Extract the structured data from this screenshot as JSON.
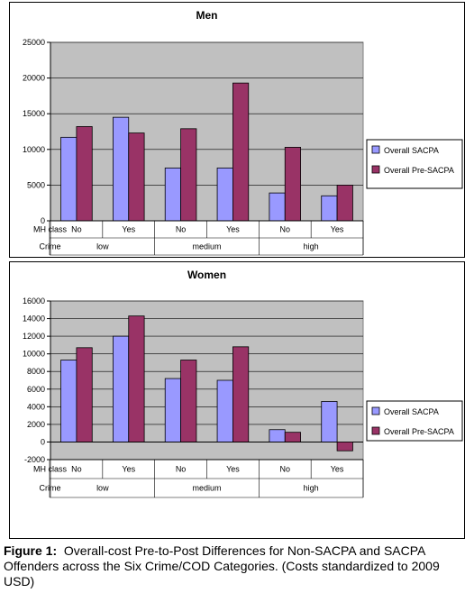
{
  "chart_data": [
    {
      "type": "bar",
      "title": "Men",
      "categories": [
        "No",
        "Yes",
        "No",
        "Yes",
        "No",
        "Yes"
      ],
      "category_row_label": "MH class",
      "groups": [
        {
          "label": "low",
          "span": 2
        },
        {
          "label": "medium",
          "span": 2
        },
        {
          "label": "high",
          "span": 2
        }
      ],
      "group_row_label": "Crime",
      "series": [
        {
          "name": "Overall SACPA",
          "color": "#9999ff",
          "values": [
            11700,
            14500,
            7400,
            7400,
            3900,
            3500
          ]
        },
        {
          "name": "Overall Pre-SACPA",
          "color": "#993366",
          "values": [
            13200,
            12300,
            12900,
            19300,
            10300,
            5000
          ]
        }
      ],
      "yticks": [
        0,
        5000,
        10000,
        15000,
        20000,
        25000
      ],
      "ylim": [
        0,
        25000
      ],
      "grid": true,
      "plot_bg": "#c0c0c0",
      "legend": "right"
    },
    {
      "type": "bar",
      "title": "Women",
      "categories": [
        "No",
        "Yes",
        "No",
        "Yes",
        "No",
        "Yes"
      ],
      "category_row_label": "MH class",
      "groups": [
        {
          "label": "low",
          "span": 2
        },
        {
          "label": "medium",
          "span": 2
        },
        {
          "label": "high",
          "span": 2
        }
      ],
      "group_row_label": "Crime",
      "series": [
        {
          "name": "Overall SACPA",
          "color": "#9999ff",
          "values": [
            9300,
            12000,
            7200,
            7000,
            1400,
            4600
          ]
        },
        {
          "name": "Overall Pre-SACPA",
          "color": "#993366",
          "values": [
            10700,
            14300,
            9300,
            10800,
            1100,
            -1000
          ]
        }
      ],
      "yticks": [
        -2000,
        0,
        2000,
        4000,
        6000,
        8000,
        10000,
        12000,
        14000,
        16000
      ],
      "ylim": [
        -2000,
        16000
      ],
      "grid": true,
      "plot_bg": "#c0c0c0",
      "legend": "right"
    }
  ],
  "caption": {
    "label": "Figure 1:",
    "line1": "Overall-cost Pre-to-Post Differences for Non-SACPA and SACPA",
    "line2": "Offenders across the Six Crime/COD Categories. (Costs standardized to 2009",
    "line3": "USD)"
  }
}
